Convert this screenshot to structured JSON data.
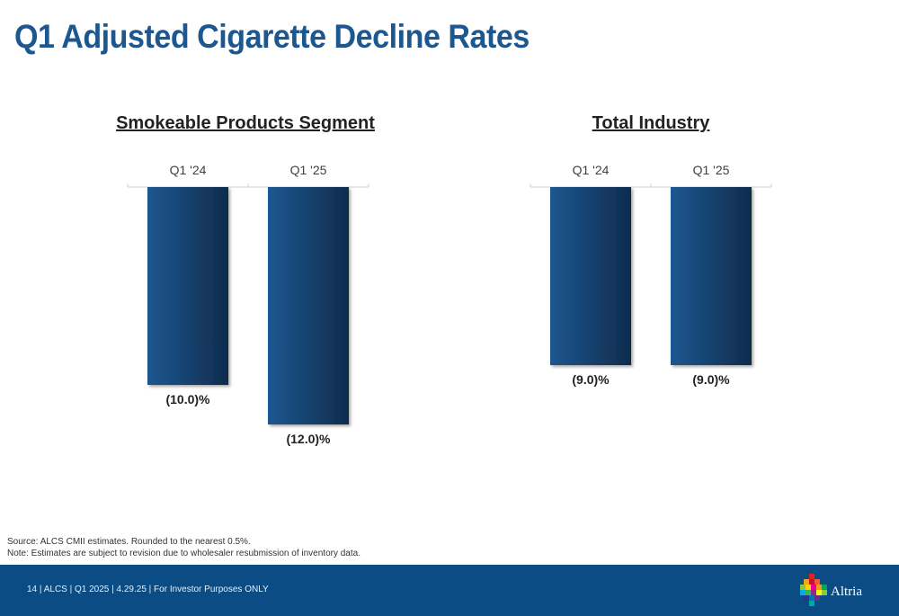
{
  "slide": {
    "title": "Q1 Adjusted Cigarette Decline Rates",
    "source_note": "Source: ALCS CMII estimates. Rounded to the nearest 0.5%.",
    "estimate_note": "Note: Estimates are subject to revision due to wholesaler resubmission of inventory data.",
    "footer_text": "14 | ALCS | Q1 2025 | 4.29.25 | For Investor Purposes ONLY",
    "logo_text": "Altria",
    "logo_icon": "altria-mosaic-logo-icon",
    "colors": {
      "title": "#1d5790",
      "bar_light": "#1d5790",
      "bar_dark": "#0f2c4d",
      "footer": "#0b4c84"
    }
  },
  "chart_data": [
    {
      "type": "bar",
      "title": "Smokeable Products Segment",
      "categories": [
        "Q1 '24",
        "Q1 '25"
      ],
      "values": [
        -10.0,
        -12.0
      ],
      "data_labels": [
        "(10.0)%",
        "(12.0)%"
      ],
      "ylim": [
        -13.5,
        0
      ],
      "xaxis_position": "top",
      "grid": false,
      "legend": "none"
    },
    {
      "type": "bar",
      "title": "Total Industry",
      "categories": [
        "Q1 '24",
        "Q1 '25"
      ],
      "values": [
        -9.0,
        -9.0
      ],
      "data_labels": [
        "(9.0)%",
        "(9.0)%"
      ],
      "ylim": [
        -13.5,
        0
      ],
      "xaxis_position": "top",
      "grid": false,
      "legend": "none"
    }
  ]
}
